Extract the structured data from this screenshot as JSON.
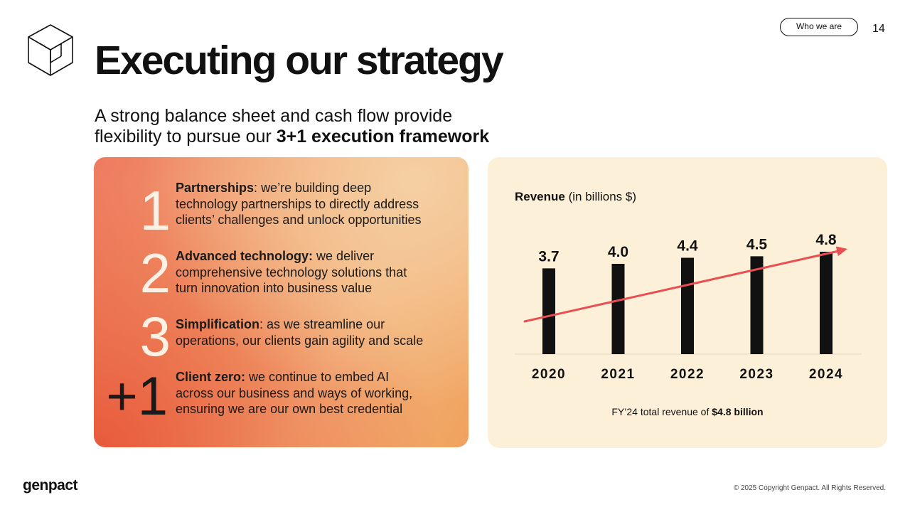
{
  "header": {
    "title": "Executing our strategy",
    "subtitle_line1": "A strong balance sheet and cash flow provide",
    "subtitle_line2_prefix": "flexibility to pursue our ",
    "subtitle_line2_bold": "3+1 execution framework",
    "section_pill": "Who we are",
    "page_number": "14"
  },
  "framework": {
    "items": [
      {
        "number": "1",
        "title": "Partnerships",
        "sep": ": ",
        "line1": "we’re building deep",
        "line2": "technology partnerships to directly address",
        "line3": "clients’ challenges and unlock opportunities"
      },
      {
        "number": "2",
        "title": "Advanced technology:",
        "sep": " ",
        "line1": "we deliver",
        "line2": "comprehensive technology solutions that",
        "line3": "turn innovation into business value"
      },
      {
        "number": "3",
        "title": "Simplification",
        "sep": ": ",
        "line1": "as we streamline our",
        "line2": "operations, our clients gain agility and scale",
        "line3": ""
      },
      {
        "number": "+1",
        "title": "Client zero:",
        "sep": " ",
        "line1": "we continue to embed AI",
        "line2": "across our business and ways of working,",
        "line3": "ensuring we are our own best credential"
      }
    ]
  },
  "chart_data": {
    "type": "bar",
    "title_bold": "Revenue",
    "title_rest": " (in billions $)",
    "categories": [
      "2020",
      "2021",
      "2022",
      "2023",
      "2024"
    ],
    "values": [
      3.7,
      4.0,
      4.4,
      4.5,
      4.8
    ],
    "value_labels": [
      "3.7",
      "4.0",
      "4.4",
      "4.5",
      "4.8"
    ],
    "bar_color": "#111111",
    "trend_color": "#e84f52",
    "trend_arrow": true
  },
  "footnote": {
    "prefix": "FY’24 total revenue of ",
    "bold": "$4.8 billion"
  },
  "footer": {
    "brand": "genpact",
    "copyright": "© 2025 Copyright Genpact. All Rights Reserved."
  }
}
